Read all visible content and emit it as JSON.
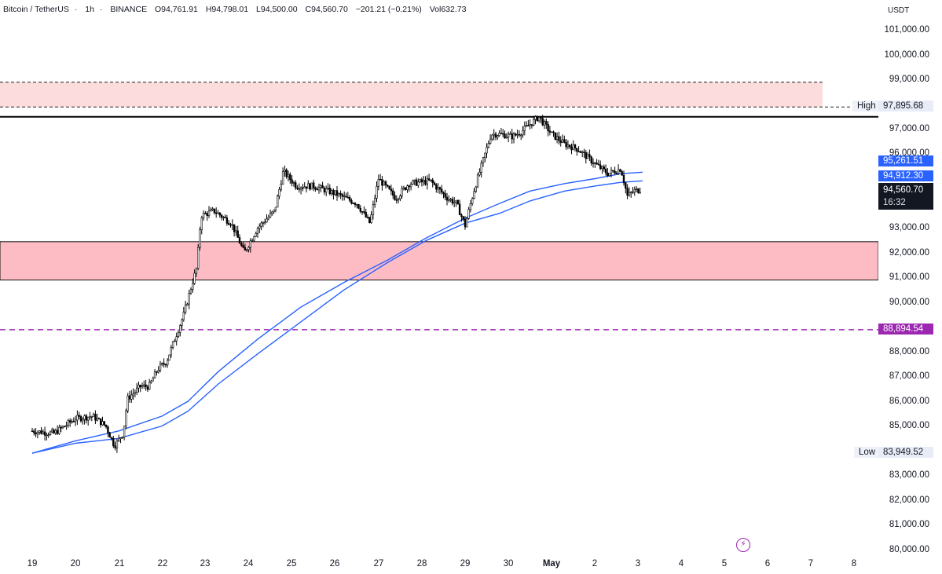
{
  "legend": {
    "symbol": "Bitcoin / TetherUS",
    "interval": "1h",
    "exchange": "BINANCE",
    "open": "O94,761.91",
    "high": "H94,798.01",
    "low": "L94,500.00",
    "close": "C94,560.70",
    "change": "−201.21 (−0.21%)",
    "volume": "Vol632.73"
  },
  "price_axis": {
    "currency": "USDT",
    "ticks": [
      "101,000.00",
      "100,000.00",
      "99,000.00",
      "97,000.00",
      "96,000.00",
      "93,000.00",
      "92,000.00",
      "91,000.00",
      "90,000.00",
      "88,000.00",
      "87,000.00",
      "86,000.00",
      "85,000.00",
      "83,000.00",
      "82,000.00",
      "81,000.00",
      "80,000.00"
    ]
  },
  "tags": {
    "high_label": "High",
    "high_value": "97,895.68",
    "low_label": "Low",
    "low_value": "83,949.52",
    "ma1_value": "95,261.51",
    "ma2_value": "94,912.30",
    "last_price": "94,560.70",
    "countdown": "16:32",
    "dashed_level": "88,894.54"
  },
  "time_axis": {
    "ticks": [
      "19",
      "20",
      "21",
      "22",
      "23",
      "24",
      "25",
      "26",
      "27",
      "28",
      "29",
      "30",
      "May",
      "2",
      "3",
      "4",
      "5",
      "6",
      "7",
      "8"
    ]
  },
  "colors": {
    "up": "#ffffff",
    "down": "#000000",
    "ma": "#2962ff",
    "zone_light": "#fcdcdc",
    "zone_strong": "#fdbcc4",
    "dashed": "#9c27b0"
  },
  "chart_data": {
    "type": "candlestick",
    "symbol": "Bitcoin / TetherUS",
    "interval": "1h",
    "ylim": [
      79700,
      102000
    ],
    "key_levels": {
      "high": 97895.68,
      "low": 83949.52,
      "dashed": 88894.54,
      "ma_fast": 95261.51,
      "ma_slow": 94912.3,
      "last": 94560.7
    },
    "zones": [
      {
        "from": 97895.68,
        "to": 98900,
        "style": "light"
      },
      {
        "from": 90900,
        "to": 92450,
        "style": "strong"
      }
    ],
    "resistance_line": 97500,
    "day_labels": [
      "19",
      "20",
      "21",
      "22",
      "23",
      "24",
      "25",
      "26",
      "27",
      "28",
      "29",
      "30",
      "May",
      "2",
      "3",
      "4",
      "5",
      "6",
      "7",
      "8"
    ],
    "price_path": [
      [
        0,
        84800
      ],
      [
        0.5,
        84700
      ],
      [
        1.0,
        85300
      ],
      [
        1.4,
        85400
      ],
      [
        1.7,
        85000
      ],
      [
        1.9,
        84200
      ],
      [
        2.1,
        84700
      ],
      [
        2.2,
        86100
      ],
      [
        2.5,
        86600
      ],
      [
        2.7,
        86600
      ],
      [
        2.9,
        87300
      ],
      [
        3.1,
        87600
      ],
      [
        3.5,
        89500
      ],
      [
        3.7,
        90800
      ],
      [
        3.8,
        91400
      ],
      [
        3.9,
        93500
      ],
      [
        4.2,
        93700
      ],
      [
        4.6,
        93200
      ],
      [
        4.9,
        92000
      ],
      [
        5.2,
        93000
      ],
      [
        5.6,
        93700
      ],
      [
        5.8,
        95300
      ],
      [
        6.1,
        94700
      ],
      [
        6.5,
        94700
      ],
      [
        7.0,
        94400
      ],
      [
        7.5,
        94000
      ],
      [
        7.8,
        93200
      ],
      [
        8.0,
        95000
      ],
      [
        8.4,
        94200
      ],
      [
        8.7,
        94800
      ],
      [
        9.2,
        94900
      ],
      [
        9.6,
        94200
      ],
      [
        9.8,
        94000
      ],
      [
        10.0,
        93100
      ],
      [
        10.2,
        94500
      ],
      [
        10.6,
        96800
      ],
      [
        10.8,
        96800
      ],
      [
        11.1,
        96700
      ],
      [
        11.3,
        96900
      ],
      [
        11.7,
        97500
      ],
      [
        12.0,
        96800
      ],
      [
        12.3,
        96400
      ],
      [
        12.6,
        96200
      ],
      [
        13.0,
        95600
      ],
      [
        13.3,
        95200
      ],
      [
        13.6,
        95400
      ],
      [
        13.75,
        94300
      ],
      [
        13.9,
        94500
      ],
      [
        14.05,
        94560
      ]
    ],
    "ma_fast": [
      [
        0,
        83900
      ],
      [
        1.0,
        84400
      ],
      [
        2.0,
        84800
      ],
      [
        3.0,
        85400
      ],
      [
        3.6,
        86000
      ],
      [
        4.3,
        87200
      ],
      [
        5.2,
        88500
      ],
      [
        6.2,
        89800
      ],
      [
        7.2,
        90800
      ],
      [
        8.2,
        91700
      ],
      [
        9.1,
        92600
      ],
      [
        10.0,
        93400
      ],
      [
        10.8,
        94000
      ],
      [
        11.5,
        94500
      ],
      [
        12.3,
        94800
      ],
      [
        13.0,
        95000
      ],
      [
        13.6,
        95200
      ],
      [
        14.1,
        95261.51
      ]
    ],
    "ma_slow": [
      [
        0,
        83900
      ],
      [
        1.0,
        84300
      ],
      [
        2.0,
        84500
      ],
      [
        3.0,
        85000
      ],
      [
        3.6,
        85600
      ],
      [
        4.3,
        86700
      ],
      [
        5.2,
        87900
      ],
      [
        6.2,
        89200
      ],
      [
        7.2,
        90500
      ],
      [
        8.2,
        91600
      ],
      [
        9.1,
        92500
      ],
      [
        10.0,
        93200
      ],
      [
        10.8,
        93600
      ],
      [
        11.5,
        94100
      ],
      [
        12.3,
        94500
      ],
      [
        13.0,
        94700
      ],
      [
        13.6,
        94850
      ],
      [
        14.1,
        94912.3
      ]
    ]
  }
}
